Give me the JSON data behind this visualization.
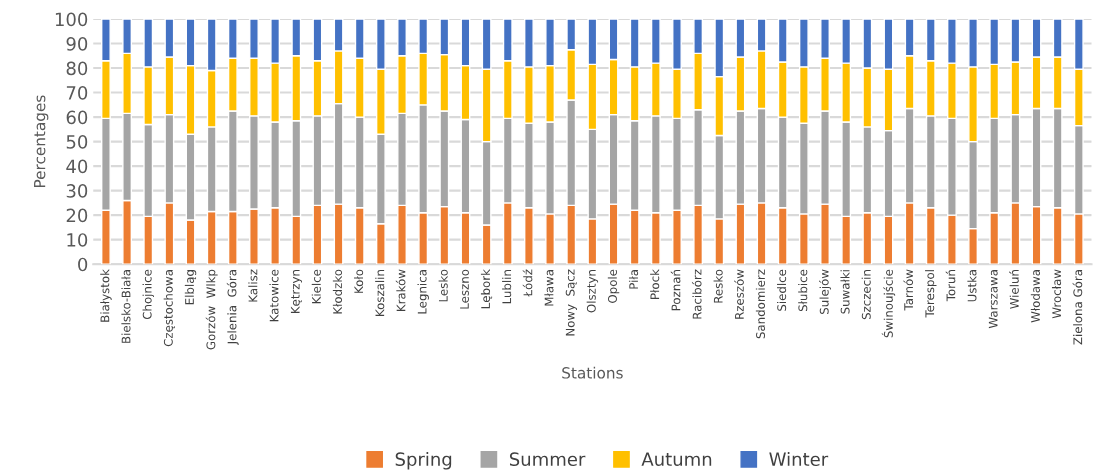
{
  "chart_data": {
    "type": "bar",
    "stacked": true,
    "xlabel": "Stations",
    "ylabel": "Percentages",
    "ylim": [
      0,
      100
    ],
    "yticks": [
      0,
      10,
      20,
      30,
      40,
      50,
      60,
      70,
      80,
      90,
      100
    ],
    "grid": "y",
    "legend": "bottom",
    "categories": [
      "Białystok",
      "Bielsko-Biała",
      "Chojnice",
      "Częstochowa",
      "Elbląg",
      "Gorzów  Wlkp",
      "Jelenia  Góra",
      "Kalisz",
      "Katowice",
      "Kętrzyn",
      "Kielce",
      "Kłodzko",
      "Koło",
      "Koszalin",
      "Kraków",
      "Legnica",
      "Lesko",
      "Leszno",
      "Lębork",
      "Lublin",
      "Łódź",
      "Mława",
      "Nowy  Sącz",
      "Olsztyn",
      "Opole",
      "Piła",
      "Płock",
      "Poznań",
      "Racibórz",
      "Resko",
      "Rzeszów",
      "Sandomierz",
      "Siedlce",
      "Słubice",
      "Sulejów",
      "Suwałki",
      "Szczecin",
      "Świnoujście",
      "Tarnów",
      "Terespol",
      "Toruń",
      "Ustka",
      "Warszawa",
      "Wieluń",
      "Włodawa",
      "Wrocław",
      "Zielona Góra"
    ],
    "series": [
      {
        "name": "Spring",
        "color": "#ed7d31",
        "values": [
          22,
          26,
          19.5,
          25,
          18,
          21.5,
          21.5,
          22.5,
          23,
          19.5,
          24,
          24.5,
          23,
          16.5,
          24,
          21,
          23.5,
          21,
          16,
          25,
          23,
          20.5,
          24,
          18.5,
          24.5,
          22,
          21,
          22,
          24,
          18.5,
          24.5,
          25,
          23,
          20.5,
          24.5,
          19.5,
          21,
          19.5,
          25,
          23,
          20,
          14.5,
          21,
          25,
          23.5,
          23,
          20.5
        ]
      },
      {
        "name": "Summer",
        "color": "#a5a5a5",
        "values": [
          37.5,
          35.5,
          37.5,
          36,
          35,
          34.5,
          41,
          38,
          35,
          39,
          36.5,
          41,
          37,
          36.5,
          37.5,
          44,
          39,
          38,
          34,
          34.5,
          34.5,
          37.5,
          43,
          36.5,
          36.5,
          36.5,
          39.5,
          37.5,
          39,
          34,
          38,
          38.5,
          37,
          37,
          38,
          38.5,
          35,
          35,
          38.5,
          37.5,
          39.5,
          35.5,
          38.5,
          36,
          40,
          40.5,
          36
        ]
      },
      {
        "name": "Autumn",
        "color": "#ffc000",
        "values": [
          23.5,
          24.5,
          23.5,
          23.5,
          28,
          23,
          21.5,
          23.5,
          24,
          26.5,
          22.5,
          21.5,
          24,
          26.5,
          23.5,
          21,
          23,
          22,
          29.5,
          23.5,
          23,
          23,
          20.5,
          26.5,
          22.5,
          22,
          21.5,
          20,
          23,
          24,
          22,
          23.5,
          22.5,
          23,
          21.5,
          24,
          24,
          25,
          21.5,
          22.5,
          22.5,
          30.5,
          22,
          21.5,
          21,
          21,
          23
        ]
      },
      {
        "name": "Winter",
        "color": "#4472c4",
        "values": [
          17,
          14,
          19.5,
          15.5,
          19,
          21,
          16,
          16,
          18,
          15,
          17,
          13,
          16,
          20.5,
          15,
          14,
          14.5,
          19,
          20.5,
          17,
          19.5,
          19,
          12.5,
          18.5,
          16.5,
          19.5,
          18,
          20.5,
          14,
          23.5,
          15.5,
          13,
          17.5,
          19.5,
          16,
          18,
          20,
          20.5,
          15,
          17,
          18,
          19.5,
          18.5,
          17.5,
          15.5,
          15.5,
          20.5
        ]
      }
    ]
  }
}
